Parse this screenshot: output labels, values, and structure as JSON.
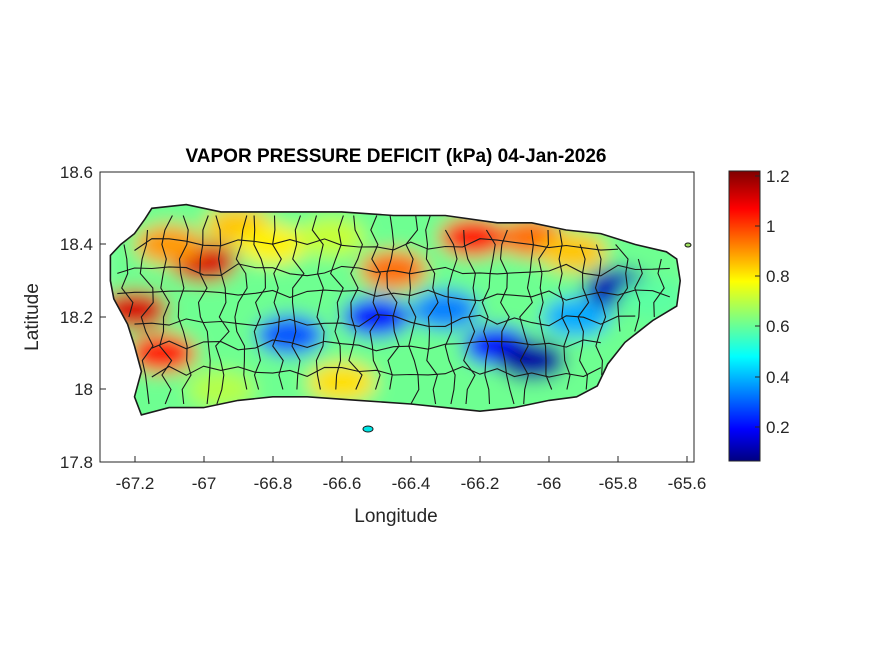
{
  "title": "VAPOR PRESSURE DEFICIT (kPa) 04-Jan-2026",
  "xlabel": "Longitude",
  "ylabel": "Latitude",
  "x_ticks": [
    "-67.2",
    "-67",
    "-66.8",
    "-66.6",
    "-66.4",
    "-66.2",
    "-66",
    "-65.8",
    "-65.6"
  ],
  "y_ticks": [
    "18.6",
    "18.4",
    "18.2",
    "18",
    "17.8"
  ],
  "colorbar_ticks": [
    "1.2",
    "1",
    "0.8",
    "0.6",
    "0.4",
    "0.2"
  ],
  "chart_data": {
    "type": "heatmap",
    "title": "VAPOR PRESSURE DEFICIT (kPa) 04-Jan-2026",
    "xlabel": "Longitude",
    "ylabel": "Latitude",
    "xlim": [
      -67.3,
      -65.58
    ],
    "ylim": [
      17.8,
      18.6
    ],
    "x_ticks": [
      -67.2,
      -67,
      -66.8,
      -66.6,
      -66.4,
      -66.2,
      -66,
      -65.8,
      -65.6
    ],
    "y_ticks": [
      18.6,
      18.4,
      18.2,
      18,
      17.8
    ],
    "colorbar": {
      "min": 0.06,
      "max": 1.22,
      "ticks": [
        1.2,
        1,
        0.8,
        0.6,
        0.4,
        0.2
      ],
      "colormap": "jet",
      "unit": "kPa"
    },
    "grid": false,
    "region_outline": [
      [
        -67.27,
        18.37
      ],
      [
        -67.24,
        18.4
      ],
      [
        -67.2,
        18.43
      ],
      [
        -67.17,
        18.47
      ],
      [
        -67.15,
        18.5
      ],
      [
        -67.05,
        18.51
      ],
      [
        -66.95,
        18.49
      ],
      [
        -66.8,
        18.49
      ],
      [
        -66.6,
        18.49
      ],
      [
        -66.45,
        18.48
      ],
      [
        -66.3,
        18.48
      ],
      [
        -66.15,
        18.46
      ],
      [
        -66.05,
        18.46
      ],
      [
        -65.95,
        18.44
      ],
      [
        -65.85,
        18.43
      ],
      [
        -65.75,
        18.4
      ],
      [
        -65.66,
        18.38
      ],
      [
        -65.63,
        18.36
      ],
      [
        -65.62,
        18.3
      ],
      [
        -65.63,
        18.23
      ],
      [
        -65.7,
        18.19
      ],
      [
        -65.78,
        18.13
      ],
      [
        -65.83,
        18.07
      ],
      [
        -65.86,
        18.01
      ],
      [
        -65.92,
        17.98
      ],
      [
        -66.0,
        17.97
      ],
      [
        -66.1,
        17.95
      ],
      [
        -66.2,
        17.94
      ],
      [
        -66.3,
        17.95
      ],
      [
        -66.4,
        17.96
      ],
      [
        -66.55,
        17.97
      ],
      [
        -66.7,
        17.98
      ],
      [
        -66.8,
        17.98
      ],
      [
        -66.9,
        17.97
      ],
      [
        -67.0,
        17.95
      ],
      [
        -67.1,
        17.95
      ],
      [
        -67.18,
        17.93
      ],
      [
        -67.2,
        17.98
      ],
      [
        -67.18,
        18.05
      ],
      [
        -67.2,
        18.12
      ],
      [
        -67.22,
        18.18
      ],
      [
        -67.26,
        18.25
      ],
      [
        -67.27,
        18.3
      ]
    ],
    "field_blobs": [
      {
        "lon": -67.2,
        "lat": 18.22,
        "value": 1.12
      },
      {
        "lon": -67.12,
        "lat": 18.1,
        "value": 1.05
      },
      {
        "lon": -67.0,
        "lat": 18.35,
        "value": 1.12
      },
      {
        "lon": -67.1,
        "lat": 18.4,
        "value": 0.9
      },
      {
        "lon": -66.9,
        "lat": 18.45,
        "value": 0.85
      },
      {
        "lon": -66.8,
        "lat": 18.4,
        "value": 0.8
      },
      {
        "lon": -66.63,
        "lat": 18.42,
        "value": 0.72
      },
      {
        "lon": -66.45,
        "lat": 18.33,
        "value": 0.95
      },
      {
        "lon": -66.22,
        "lat": 18.42,
        "value": 1.05
      },
      {
        "lon": -66.05,
        "lat": 18.42,
        "value": 0.95
      },
      {
        "lon": -65.93,
        "lat": 18.38,
        "value": 0.85
      },
      {
        "lon": -66.6,
        "lat": 18.02,
        "value": 0.82
      },
      {
        "lon": -66.95,
        "lat": 18.0,
        "value": 0.7
      },
      {
        "lon": -66.75,
        "lat": 18.15,
        "value": 0.3
      },
      {
        "lon": -66.5,
        "lat": 18.2,
        "value": 0.22
      },
      {
        "lon": -66.3,
        "lat": 18.22,
        "value": 0.35
      },
      {
        "lon": -66.15,
        "lat": 18.12,
        "value": 0.22
      },
      {
        "lon": -66.05,
        "lat": 18.08,
        "value": 0.1
      },
      {
        "lon": -65.92,
        "lat": 18.2,
        "value": 0.4
      },
      {
        "lon": -65.8,
        "lat": 18.28,
        "value": 0.12
      },
      {
        "lon": -65.7,
        "lat": 18.25,
        "value": 0.6
      }
    ],
    "base_value": 0.62,
    "boundary_color": "#1a1a1a"
  }
}
